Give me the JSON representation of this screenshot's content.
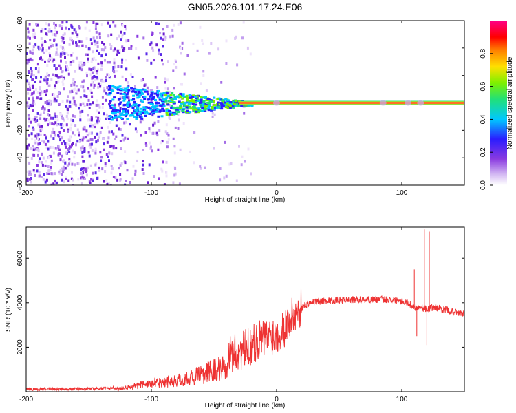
{
  "title": "GN05.2026.101.17.24.E06",
  "chart_data": [
    {
      "type": "heatmap",
      "xlabel": "Height of straight line (km)",
      "ylabel": "Frequency (Hz)",
      "xlim": [
        -200,
        150
      ],
      "ylim": [
        -60,
        60
      ],
      "xticks": [
        -200,
        -100,
        0,
        100
      ],
      "yticks": [
        60,
        40,
        20,
        0,
        -20,
        -40,
        -60
      ],
      "colorbar": {
        "label": "Normalized spectral amplitude",
        "range": [
          0,
          1
        ],
        "ticks": [
          "0.0",
          "0.2",
          "0.4",
          "0.6",
          "0.8"
        ],
        "colors": [
          "#ffffff",
          "#c9a8ee",
          "#7a2cd6",
          "#2a1cff",
          "#00c8ff",
          "#20e07a",
          "#7cf000",
          "#ffe000",
          "#ff8000",
          "#ff0000",
          "#ff0088"
        ]
      },
      "features": [
        {
          "name": "noise-scatter",
          "x": [
            -200,
            -70
          ],
          "y": [
            -60,
            60
          ],
          "amplitude": 0.2
        },
        {
          "name": "central-line",
          "x": [
            -120,
            150
          ],
          "y": [
            -1,
            1
          ],
          "amplitude": 0.9
        }
      ]
    },
    {
      "type": "line",
      "xlabel": "Height of straight line (km)",
      "ylabel": "SNR (10 * v/v)",
      "xlim": [
        -200,
        150
      ],
      "ylim": [
        0,
        7400
      ],
      "xticks": [
        -200,
        -100,
        0,
        100
      ],
      "yticks": [
        2000,
        4000,
        6000
      ],
      "color": "#ee3333",
      "series": [
        {
          "name": "SNR",
          "x": [
            -200,
            -180,
            -160,
            -140,
            -130,
            -120,
            -110,
            -100,
            -90,
            -80,
            -70,
            -60,
            -50,
            -40,
            -35,
            -30,
            -25,
            -20,
            -15,
            -10,
            -5,
            0,
            5,
            10,
            15,
            20,
            25,
            30,
            40,
            50,
            60,
            70,
            80,
            90,
            100,
            105,
            110,
            115,
            120,
            125,
            130,
            140,
            150
          ],
          "y": [
            100,
            120,
            120,
            150,
            180,
            250,
            380,
            500,
            600,
            650,
            800,
            1000,
            1300,
            1500,
            1700,
            1800,
            1900,
            2100,
            2300,
            2400,
            2500,
            2600,
            2800,
            3200,
            3500,
            3800,
            3950,
            4050,
            4100,
            4120,
            4130,
            4140,
            4150,
            4150,
            4100,
            4000,
            3800,
            3800,
            3700,
            3800,
            3750,
            3600,
            3500
          ]
        }
      ],
      "spikes": [
        {
          "x": 110,
          "y": 5500
        },
        {
          "x": 112,
          "y": 2500
        },
        {
          "x": 118,
          "y": 7300
        },
        {
          "x": 120,
          "y": 2100
        },
        {
          "x": 122,
          "y": 7200
        }
      ]
    }
  ]
}
